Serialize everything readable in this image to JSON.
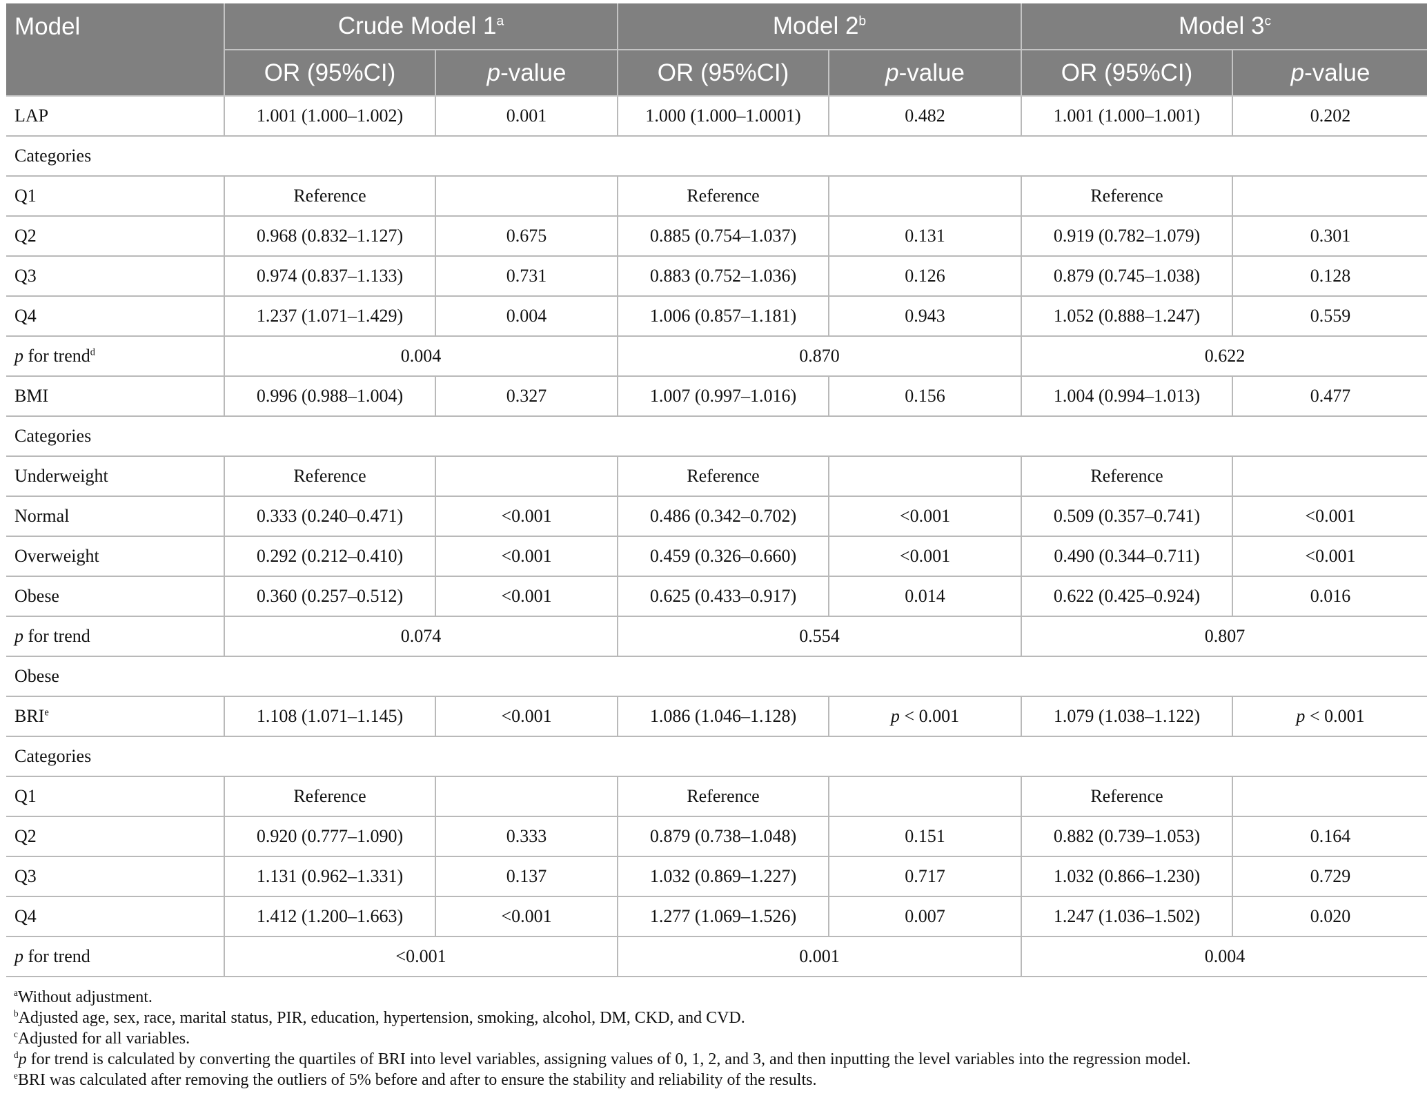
{
  "header": {
    "model_label": "Model",
    "groups": [
      {
        "name": "Crude Model 1",
        "sup": "a"
      },
      {
        "name": "Model 2",
        "sup": "b"
      },
      {
        "name": "Model 3",
        "sup": "c"
      }
    ],
    "or_label": "OR (95%CI)",
    "p_italic": "p",
    "p_rest": "-value"
  },
  "rows": [
    {
      "kind": "data",
      "label": "LAP",
      "cells": [
        "1.001 (1.000–1.002)",
        "0.001",
        "1.000 (1.000–1.0001)",
        "0.482",
        "1.001 (1.000–1.001)",
        "0.202"
      ]
    },
    {
      "kind": "section",
      "label": "Categories"
    },
    {
      "kind": "data",
      "label": "Q1",
      "cells": [
        "Reference",
        "",
        "Reference",
        "",
        "Reference",
        ""
      ]
    },
    {
      "kind": "data",
      "label": "Q2",
      "cells": [
        "0.968 (0.832–1.127)",
        "0.675",
        "0.885 (0.754–1.037)",
        "0.131",
        "0.919 (0.782–1.079)",
        "0.301"
      ]
    },
    {
      "kind": "data",
      "label": "Q3",
      "cells": [
        "0.974 (0.837–1.133)",
        "0.731",
        "0.883 (0.752–1.036)",
        "0.126",
        "0.879 (0.745–1.038)",
        "0.128"
      ]
    },
    {
      "kind": "data",
      "label": "Q4",
      "cells": [
        "1.237 (1.071–1.429)",
        "0.004",
        "1.006 (0.857–1.181)",
        "0.943",
        "1.052 (0.888–1.247)",
        "0.559"
      ]
    },
    {
      "kind": "trend",
      "label_italic": "p",
      "label_rest": " for trend",
      "sup": "d",
      "cells": [
        "0.004",
        "0.870",
        "0.622"
      ]
    },
    {
      "kind": "data",
      "label": "BMI",
      "cells": [
        "0.996 (0.988–1.004)",
        "0.327",
        "1.007 (0.997–1.016)",
        "0.156",
        "1.004 (0.994–1.013)",
        "0.477"
      ]
    },
    {
      "kind": "section",
      "label": "Categories"
    },
    {
      "kind": "data",
      "label": "Underweight",
      "cells": [
        "Reference",
        "",
        "Reference",
        "",
        "Reference",
        ""
      ]
    },
    {
      "kind": "data",
      "label": "Normal",
      "cells": [
        "0.333 (0.240–0.471)",
        "<0.001",
        "0.486 (0.342–0.702)",
        "<0.001",
        "0.509 (0.357–0.741)",
        "<0.001"
      ]
    },
    {
      "kind": "data",
      "label": "Overweight",
      "cells": [
        "0.292 (0.212–0.410)",
        "<0.001",
        "0.459 (0.326–0.660)",
        "<0.001",
        "0.490 (0.344–0.711)",
        "<0.001"
      ]
    },
    {
      "kind": "data",
      "label": "Obese",
      "cells": [
        "0.360 (0.257–0.512)",
        "<0.001",
        "0.625 (0.433–0.917)",
        "0.014",
        "0.622 (0.425–0.924)",
        "0.016"
      ]
    },
    {
      "kind": "trend",
      "label_italic": "p",
      "label_rest": " for trend",
      "sup": "",
      "cells": [
        "0.074",
        "0.554",
        "0.807"
      ]
    },
    {
      "kind": "section",
      "label": "Obese"
    },
    {
      "kind": "data",
      "label": "BRI",
      "sup": "e",
      "cells": [
        "1.108 (1.071–1.145)",
        "<0.001",
        "1.086 (1.046–1.128)",
        "p < 0.001",
        "1.079 (1.038–1.122)",
        "p < 0.001"
      ]
    },
    {
      "kind": "section",
      "label": "Categories"
    },
    {
      "kind": "data",
      "label": "Q1",
      "cells": [
        "Reference",
        "",
        "Reference",
        "",
        "Reference",
        ""
      ]
    },
    {
      "kind": "data",
      "label": "Q2",
      "cells": [
        "0.920 (0.777–1.090)",
        "0.333",
        "0.879 (0.738–1.048)",
        "0.151",
        "0.882 (0.739–1.053)",
        "0.164"
      ]
    },
    {
      "kind": "data",
      "label": "Q3",
      "cells": [
        "1.131 (0.962–1.331)",
        "0.137",
        "1.032 (0.869–1.227)",
        "0.717",
        "1.032 (0.866–1.230)",
        "0.729"
      ]
    },
    {
      "kind": "data",
      "label": "Q4",
      "cells": [
        "1.412 (1.200–1.663)",
        "<0.001",
        "1.277 (1.069–1.526)",
        "0.007",
        "1.247 (1.036–1.502)",
        "0.020"
      ]
    },
    {
      "kind": "trend",
      "label_italic": "p",
      "label_rest": " for trend",
      "sup": "",
      "cells": [
        "<0.001",
        "0.001",
        "0.004"
      ]
    }
  ],
  "notes": [
    {
      "sup": "a",
      "italic": "",
      "text": "Without adjustment."
    },
    {
      "sup": "b",
      "italic": "",
      "text": "Adjusted age, sex, race, marital status, PIR, education, hypertension, smoking, alcohol, DM, CKD, and CVD."
    },
    {
      "sup": "c",
      "italic": "",
      "text": "Adjusted for all variables."
    },
    {
      "sup": "d",
      "italic": "p",
      "text": " for trend is calculated by converting the quartiles of BRI into level variables, assigning values of 0, 1, 2, and 3, and then inputting the level variables into the regression model."
    },
    {
      "sup": "e",
      "italic": "",
      "text": "BRI was calculated after removing the outliers of 5% before and after to ensure the stability and reliability of the results."
    }
  ]
}
